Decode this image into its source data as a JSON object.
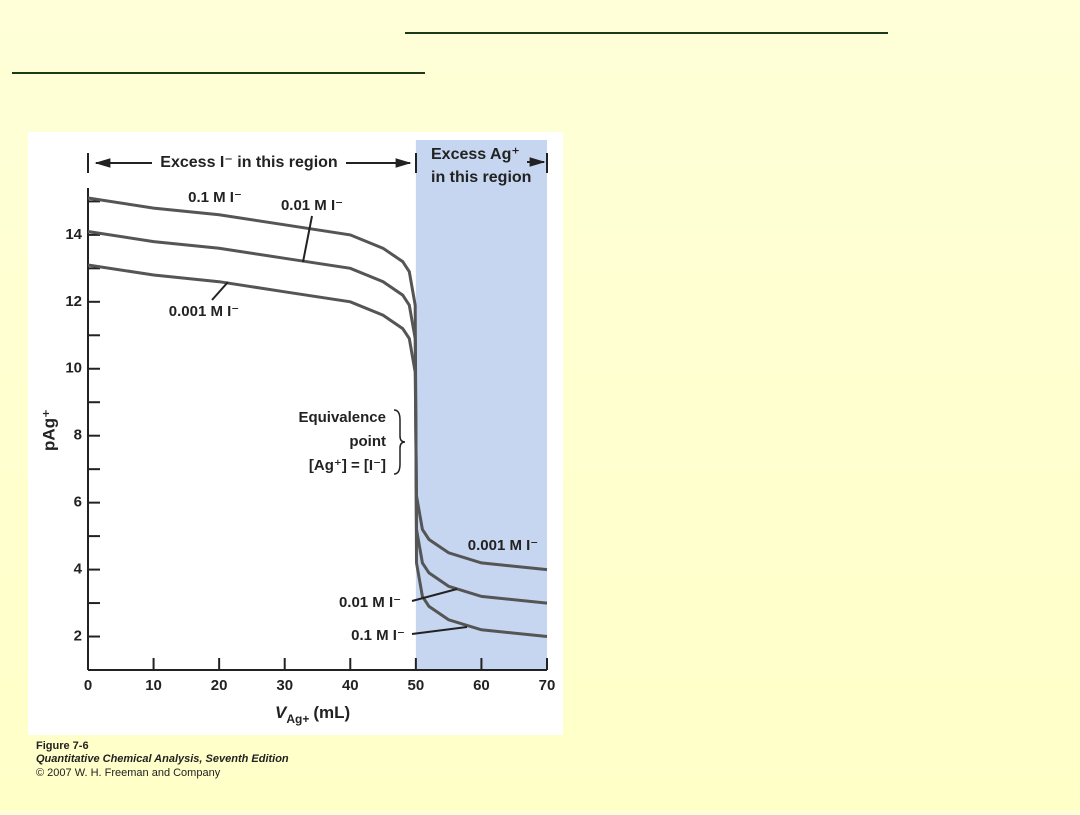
{
  "chart_data": {
    "type": "line",
    "header_left": "Excess I⁻ in this region",
    "header_right": [
      "Excess Ag⁺",
      "in this region"
    ],
    "y_label": "pAg⁺",
    "x_label": {
      "symbol": "V",
      "subscript": "Ag+",
      "unit": "(mL)"
    },
    "equivalence_note": [
      "Equivalence",
      "point",
      "[Ag⁺] = [I⁻]"
    ],
    "x": [
      0,
      10,
      20,
      30,
      40,
      45,
      48,
      49,
      49.9,
      50,
      50.1,
      51,
      52,
      55,
      60,
      70
    ],
    "series": [
      {
        "name": "0.1 M I⁻",
        "color": "#555555",
        "values": [
          15.1,
          14.8,
          14.6,
          14.3,
          14.0,
          13.6,
          13.2,
          12.9,
          11.9,
          8.0,
          4.2,
          3.2,
          2.9,
          2.5,
          2.2,
          2.0
        ]
      },
      {
        "name": "0.01 M I⁻",
        "color": "#555555",
        "values": [
          14.1,
          13.8,
          13.6,
          13.3,
          13.0,
          12.6,
          12.2,
          11.9,
          10.9,
          8.0,
          5.2,
          4.2,
          3.9,
          3.5,
          3.2,
          3.0
        ]
      },
      {
        "name": "0.001 M I⁻",
        "color": "#555555",
        "values": [
          13.1,
          12.8,
          12.6,
          12.3,
          12.0,
          11.6,
          11.2,
          10.9,
          9.9,
          8.0,
          6.2,
          5.2,
          4.9,
          4.5,
          4.2,
          4.0
        ]
      }
    ],
    "xlim": [
      0,
      70
    ],
    "xticks": [
      0,
      10,
      20,
      30,
      40,
      50,
      60,
      70
    ],
    "ylim": [
      1,
      15.4
    ],
    "yticks": [
      2,
      4,
      6,
      8,
      10,
      12,
      14
    ],
    "yminorticks": [
      3,
      5,
      7,
      9,
      11,
      13,
      15
    ],
    "shaded_region": [
      50,
      70
    ],
    "shade_color": "#c6d6f0",
    "caption": [
      "Figure 7-6",
      "Quantitative Chemical Analysis, Seventh Edition",
      "© 2007 W. H. Freeman and Company"
    ]
  }
}
